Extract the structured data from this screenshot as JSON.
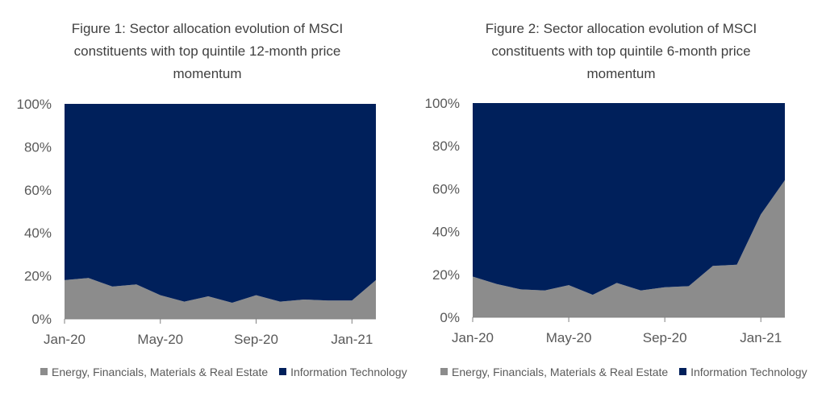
{
  "chart_data": [
    {
      "type": "area",
      "title_prefix": "Figure 1",
      "title": ": Sector allocation evolution of MSCI constituents with top quintile 12-month price momentum",
      "y_ticks": [
        "0%",
        "20%",
        "40%",
        "60%",
        "80%",
        "100%"
      ],
      "x_ticks": [
        "Jan-20",
        "May-20",
        "Sep-20",
        "Jan-21"
      ],
      "ylim": [
        0,
        100
      ],
      "stacked_percent": true,
      "x": [
        "Jan-20",
        "Feb-20",
        "Mar-20",
        "Apr-20",
        "May-20",
        "Jun-20",
        "Jul-20",
        "Aug-20",
        "Sep-20",
        "Oct-20",
        "Nov-20",
        "Dec-20",
        "Jan-21",
        "Feb-21"
      ],
      "series": [
        {
          "name": "Energy, Financials, Materials & Real Estate",
          "color": "#8c8c8c",
          "values": [
            18,
            19,
            15,
            16,
            11,
            8,
            10.5,
            7.5,
            11,
            8,
            9,
            8.5,
            8.5,
            18
          ]
        },
        {
          "name": "Information Technology",
          "color": "#00205b",
          "values": [
            82,
            81,
            85,
            84,
            89,
            92,
            89.5,
            92.5,
            89,
            92,
            91,
            91.5,
            91.5,
            82
          ]
        }
      ]
    },
    {
      "type": "area",
      "title_prefix": "Figure 2",
      "title": ": Sector allocation evolution of MSCI constituents with top quintile 6-month price momentum",
      "y_ticks": [
        "0%",
        "20%",
        "40%",
        "60%",
        "80%",
        "100%"
      ],
      "x_ticks": [
        "Jan-20",
        "May-20",
        "Sep-20",
        "Jan-21"
      ],
      "ylim": [
        0,
        100
      ],
      "stacked_percent": true,
      "x": [
        "Jan-20",
        "Feb-20",
        "Mar-20",
        "Apr-20",
        "May-20",
        "Jun-20",
        "Jul-20",
        "Aug-20",
        "Sep-20",
        "Oct-20",
        "Nov-20",
        "Dec-20",
        "Jan-21",
        "Feb-21"
      ],
      "series": [
        {
          "name": "Energy, Financials, Materials & Real Estate",
          "color": "#8c8c8c",
          "values": [
            19,
            15.5,
            13,
            12.5,
            15,
            10.5,
            16,
            12.5,
            14,
            14.5,
            24,
            24.5,
            48,
            64
          ]
        },
        {
          "name": "Information Technology",
          "color": "#00205b",
          "values": [
            81,
            84.5,
            87,
            87.5,
            85,
            89.5,
            84,
            87.5,
            86,
            85.5,
            76,
            75.5,
            52,
            36
          ]
        }
      ]
    }
  ]
}
